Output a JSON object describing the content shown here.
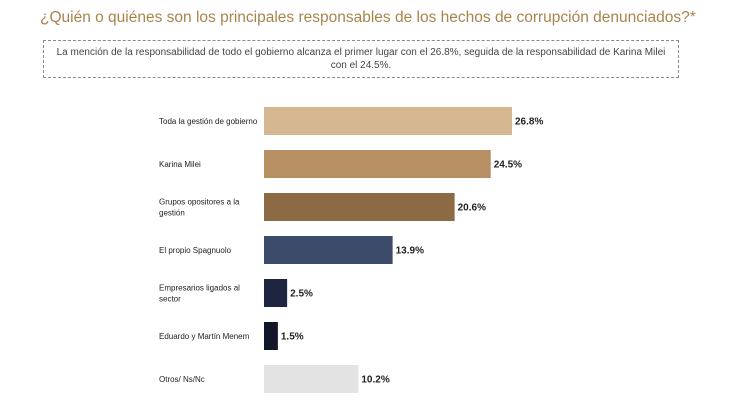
{
  "header": {
    "title": "¿Quién o quiénes son los principales responsables de los hechos de corrupción denunciados?*",
    "subtitle": "La mención de la responsabilidad de todo el gobierno alcanza el primer lugar con el 26.8%, seguida de la responsabilidad de Karina Milei con el 24.5%."
  },
  "chart_data": {
    "type": "bar",
    "orientation": "horizontal",
    "categories": [
      [
        "Toda la gestión de gobierno"
      ],
      [
        "Karina Milei"
      ],
      [
        "Grupos opositores a la",
        "gestión"
      ],
      [
        "El propio Spagnuolo"
      ],
      [
        "Empresarios ligados al",
        "sector"
      ],
      [
        "Eduardo y Martín Menem"
      ],
      [
        "Otros/ Ns/Nc"
      ]
    ],
    "values": [
      26.8,
      24.5,
      20.6,
      13.9,
      2.5,
      1.5,
      10.2
    ],
    "value_labels": [
      "26.8%",
      "24.5%",
      "20.6%",
      "13.9%",
      "2.5%",
      "1.5%",
      "10.2%"
    ],
    "colors": [
      "#d5b891",
      "#b68f63",
      "#8c6b44",
      "#3d4b6b",
      "#1e2540",
      "#13172a",
      "#e3e3e3"
    ],
    "xlim": [
      0,
      26.8
    ],
    "grid": false,
    "legend": "none"
  }
}
